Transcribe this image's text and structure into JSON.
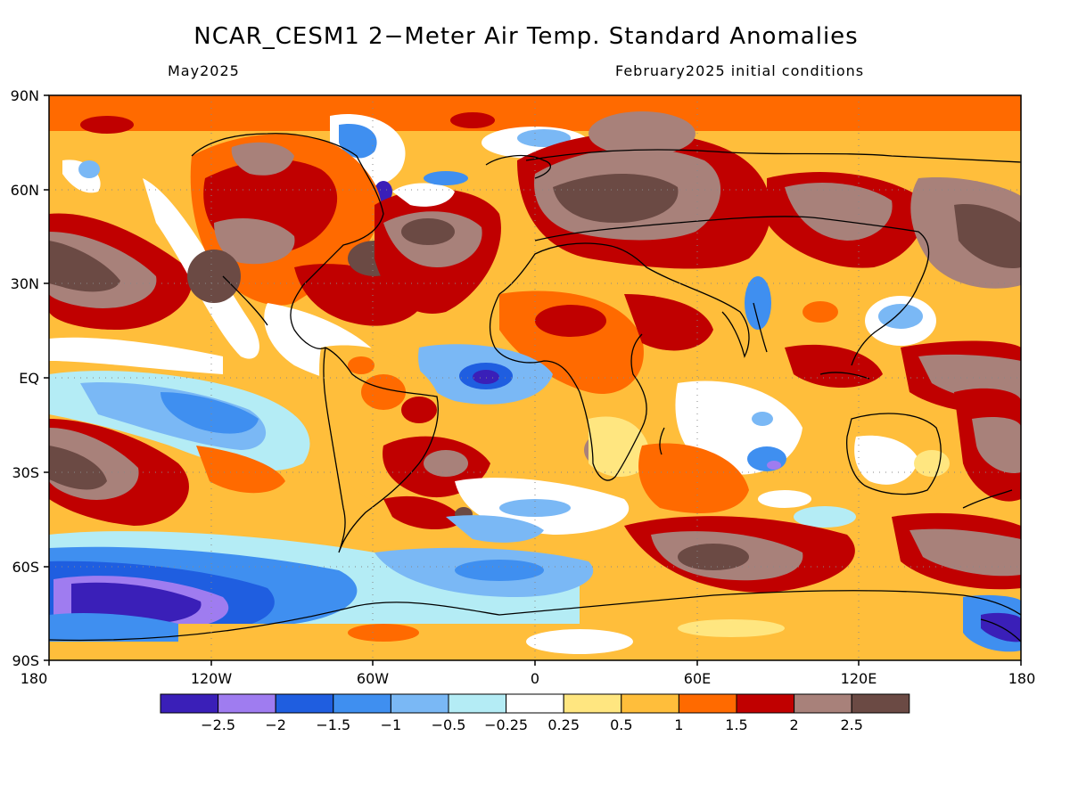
{
  "header": {
    "title": "NCAR_CESM1 2−Meter Air Temp. Standard Anomalies",
    "valid_month": "May2025",
    "init_label": "February2025 initial conditions"
  },
  "map": {
    "lat_ticks": [
      "90N",
      "60N",
      "30N",
      "EQ",
      "30S",
      "60S",
      "90S"
    ],
    "lon_ticks": [
      "180",
      "120W",
      "60W",
      "0",
      "60E",
      "120E",
      "180"
    ]
  },
  "legend": {
    "colors": [
      "#3a1fb8",
      "#9f7cf0",
      "#1f5ee0",
      "#3f8ff0",
      "#7ab8f5",
      "#b4ecf5",
      "#ffffff",
      "#ffe680",
      "#ffbe3b",
      "#ff6a00",
      "#c00000",
      "#a8817a",
      "#6b4a44"
    ],
    "labels": [
      "−2.5",
      "−2",
      "−1.5",
      "−1",
      "−0.5",
      "−0.25",
      "0.25",
      "0.5",
      "1",
      "1.5",
      "2",
      "2.5"
    ]
  }
}
